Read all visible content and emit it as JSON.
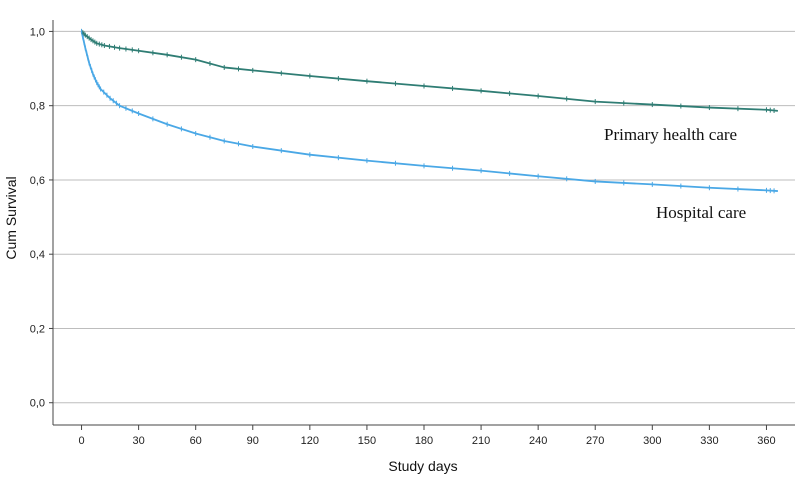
{
  "chart_data": {
    "type": "line",
    "title": "",
    "xlabel": "Study days",
    "ylabel": "Cum Survival",
    "xlim": [
      -15,
      375
    ],
    "ylim": [
      -0.06,
      1.02
    ],
    "x_ticks": [
      0,
      30,
      60,
      90,
      120,
      150,
      180,
      210,
      240,
      270,
      300,
      330,
      360
    ],
    "y_ticks": [
      {
        "value": 0.0,
        "label": "0,0"
      },
      {
        "value": 0.2,
        "label": "0,2"
      },
      {
        "value": 0.4,
        "label": "0,4"
      },
      {
        "value": 0.6,
        "label": "0,6"
      },
      {
        "value": 0.8,
        "label": "0,8"
      },
      {
        "value": 1.0,
        "label": "1,0"
      }
    ],
    "grid": true,
    "series": [
      {
        "name": "Primary health care",
        "color": "#2f7d74",
        "x": [
          0,
          2,
          5,
          8,
          12,
          20,
          30,
          45,
          60,
          75,
          90,
          120,
          150,
          180,
          210,
          240,
          270,
          300,
          330,
          360,
          366
        ],
        "y": [
          1.0,
          0.99,
          0.978,
          0.968,
          0.962,
          0.955,
          0.948,
          0.937,
          0.924,
          0.903,
          0.895,
          0.88,
          0.866,
          0.853,
          0.84,
          0.826,
          0.811,
          0.803,
          0.795,
          0.789,
          0.786
        ]
      },
      {
        "name": "Hospital care",
        "color": "#4aa8e6",
        "x": [
          0,
          2,
          4,
          6,
          8,
          10,
          15,
          20,
          30,
          45,
          60,
          75,
          90,
          120,
          150,
          180,
          210,
          240,
          270,
          300,
          330,
          360,
          366
        ],
        "y": [
          1.0,
          0.955,
          0.915,
          0.885,
          0.862,
          0.845,
          0.82,
          0.8,
          0.779,
          0.75,
          0.725,
          0.705,
          0.69,
          0.668,
          0.652,
          0.638,
          0.625,
          0.61,
          0.596,
          0.588,
          0.579,
          0.572,
          0.57
        ]
      }
    ],
    "annotations": [
      {
        "text": "Primary health care",
        "series": "Primary health care"
      },
      {
        "text": "Hospital care",
        "series": "Hospital care"
      }
    ]
  }
}
